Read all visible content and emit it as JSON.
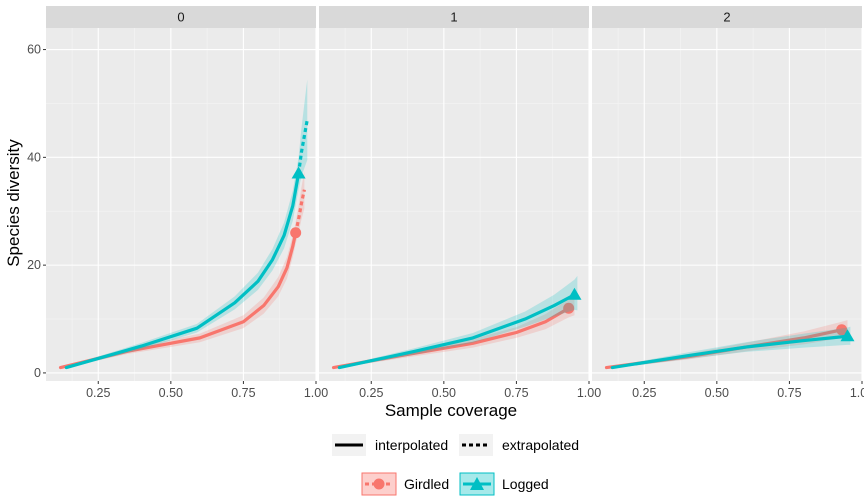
{
  "chart_data": {
    "type": "line",
    "xlabel": "Sample coverage",
    "ylabel": "Species diversity",
    "xlim": [
      0.07,
      1.0
    ],
    "ylim": [
      -1.5,
      64
    ],
    "x_ticks": [
      "0.25",
      "0.50",
      "0.75",
      "1.00"
    ],
    "x_tick_values": [
      0.25,
      0.5,
      0.75,
      1.0
    ],
    "y_ticks": [
      "0",
      "20",
      "40",
      "60"
    ],
    "y_tick_values": [
      0,
      20,
      40,
      60
    ],
    "grid": true,
    "legend_position": "bottom",
    "legend_linetype": {
      "interpolated": "interpolated",
      "extrapolated": "extrapolated"
    },
    "legend_groups": [
      "Girdled",
      "Logged"
    ],
    "colors": {
      "Girdled": "#F8766D",
      "Logged": "#00BFC4"
    },
    "panels": [
      {
        "label": "0",
        "series": [
          {
            "name": "Girdled",
            "interpolated": [
              [
                0.12,
                1
              ],
              [
                0.35,
                4
              ],
              [
                0.6,
                6.5
              ],
              [
                0.75,
                9.5
              ],
              [
                0.82,
                12.5
              ],
              [
                0.87,
                16
              ],
              [
                0.9,
                19.5
              ],
              [
                0.92,
                23.5
              ],
              [
                0.93,
                26
              ]
            ],
            "extrapolated": [
              [
                0.93,
                26
              ],
              [
                0.94,
                28.5
              ],
              [
                0.95,
                31.5
              ],
              [
                0.96,
                34
              ]
            ],
            "band_half_width": [
              0.2,
              0.5,
              0.8,
              1.2,
              1.5,
              1.8,
              2.0,
              2.0,
              2.0,
              2.5,
              3.0,
              3.5
            ],
            "observed": [
              0.93,
              26
            ]
          },
          {
            "name": "Logged",
            "interpolated": [
              [
                0.14,
                1
              ],
              [
                0.4,
                5
              ],
              [
                0.59,
                8.3
              ],
              [
                0.72,
                13
              ],
              [
                0.8,
                17
              ],
              [
                0.85,
                21
              ],
              [
                0.89,
                25.5
              ],
              [
                0.92,
                31
              ],
              [
                0.94,
                37
              ]
            ],
            "extrapolated": [
              [
                0.94,
                37
              ],
              [
                0.95,
                41
              ],
              [
                0.96,
                44
              ],
              [
                0.97,
                47
              ]
            ],
            "band_half_width": [
              0.2,
              0.6,
              0.8,
              1.2,
              1.6,
              2.0,
              2.4,
              2.8,
              3.0,
              4.5,
              6.0,
              7.5,
              9.0
            ],
            "observed": [
              0.94,
              37
            ]
          }
        ]
      },
      {
        "label": "1",
        "series": [
          {
            "name": "Girdled",
            "interpolated": [
              [
                0.12,
                1
              ],
              [
                0.35,
                3.2
              ],
              [
                0.6,
                5.5
              ],
              [
                0.75,
                7.5
              ],
              [
                0.85,
                9.5
              ],
              [
                0.93,
                12
              ]
            ],
            "extrapolated": [
              [
                0.93,
                12
              ],
              [
                0.95,
                12.6
              ]
            ],
            "band_half_width": [
              0.2,
              0.5,
              0.8,
              1.0,
              1.4,
              1.7,
              1.9
            ],
            "observed": [
              0.93,
              12
            ]
          },
          {
            "name": "Logged",
            "interpolated": [
              [
                0.14,
                1
              ],
              [
                0.4,
                4
              ],
              [
                0.6,
                6.5
              ],
              [
                0.78,
                10
              ],
              [
                0.88,
                12.5
              ],
              [
                0.95,
                14.5
              ]
            ],
            "extrapolated": [
              [
                0.95,
                14.5
              ],
              [
                0.96,
                14.8
              ]
            ],
            "band_half_width": [
              0.2,
              0.6,
              0.9,
              1.4,
              2.0,
              2.8,
              3.2
            ],
            "observed": [
              0.95,
              14.5
            ]
          }
        ]
      },
      {
        "label": "2",
        "series": [
          {
            "name": "Girdled",
            "interpolated": [
              [
                0.12,
                1
              ],
              [
                0.4,
                3
              ],
              [
                0.6,
                4.8
              ],
              [
                0.8,
                6.5
              ],
              [
                0.93,
                8
              ]
            ],
            "extrapolated": [
              [
                0.93,
                8
              ],
              [
                0.95,
                8.2
              ]
            ],
            "band_half_width": [
              0.2,
              0.5,
              0.8,
              1.2,
              1.5,
              1.6
            ],
            "observed": [
              0.93,
              8
            ]
          },
          {
            "name": "Logged",
            "interpolated": [
              [
                0.14,
                1
              ],
              [
                0.4,
                3.2
              ],
              [
                0.6,
                4.8
              ],
              [
                0.8,
                6
              ],
              [
                0.95,
                6.8
              ]
            ],
            "extrapolated": [
              [
                0.95,
                6.8
              ],
              [
                0.96,
                6.9
              ]
            ],
            "band_half_width": [
              0.2,
              0.6,
              0.9,
              1.3,
              1.6,
              1.7
            ],
            "observed": [
              0.95,
              6.8
            ]
          }
        ]
      }
    ]
  }
}
